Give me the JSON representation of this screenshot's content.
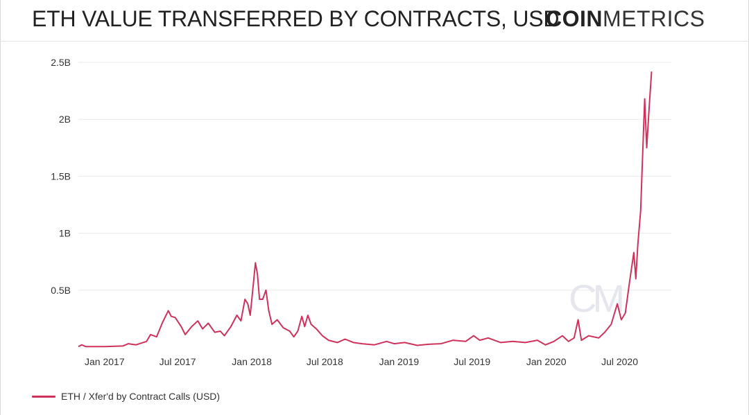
{
  "header": {
    "title": "ETH VALUE TRANSFERRED BY CONTRACTS, USD",
    "brand_bold": "COIN",
    "brand_light": "METRICS"
  },
  "watermark": "CM",
  "colors": {
    "series": "#d0315a",
    "grid": "#e9e9e9",
    "text": "#333333"
  },
  "legend": {
    "label": "ETH / Xfer'd by Contract Calls (USD)"
  },
  "chart_data": {
    "type": "line",
    "title": "ETH VALUE TRANSFERRED BY CONTRACTS, USD",
    "xlabel": "",
    "ylabel": "",
    "ylim": [
      0,
      2500000000
    ],
    "xlim": [
      "2016-10-28",
      "2020-11-06"
    ],
    "grid": "horizontal",
    "legend_position": "bottom-left",
    "y_ticks": [
      {
        "value": 500000000,
        "label": "0.5B"
      },
      {
        "value": 1000000000,
        "label": "1B"
      },
      {
        "value": 1500000000,
        "label": "1.5B"
      },
      {
        "value": 2000000000,
        "label": "2B"
      },
      {
        "value": 2500000000,
        "label": "2.5B"
      }
    ],
    "x_ticks": [
      {
        "date": "2017-01-01",
        "label": "Jan 2017"
      },
      {
        "date": "2017-07-01",
        "label": "Jul 2017"
      },
      {
        "date": "2018-01-01",
        "label": "Jan 2018"
      },
      {
        "date": "2018-07-01",
        "label": "Jul 2018"
      },
      {
        "date": "2019-01-01",
        "label": "Jan 2019"
      },
      {
        "date": "2019-07-01",
        "label": "Jul 2019"
      },
      {
        "date": "2020-01-01",
        "label": "Jan 2020"
      },
      {
        "date": "2020-07-01",
        "label": "Jul 2020"
      }
    ],
    "series": [
      {
        "name": "ETH / Xfer'd by Contract Calls (USD)",
        "points": [
          [
            "2016-10-28",
            5000000
          ],
          [
            "2016-11-05",
            20000000
          ],
          [
            "2016-11-15",
            5000000
          ],
          [
            "2017-01-01",
            5000000
          ],
          [
            "2017-02-15",
            10000000
          ],
          [
            "2017-03-01",
            30000000
          ],
          [
            "2017-03-20",
            20000000
          ],
          [
            "2017-04-15",
            50000000
          ],
          [
            "2017-04-25",
            110000000
          ],
          [
            "2017-05-10",
            90000000
          ],
          [
            "2017-05-25",
            220000000
          ],
          [
            "2017-06-08",
            320000000
          ],
          [
            "2017-06-15",
            270000000
          ],
          [
            "2017-06-25",
            260000000
          ],
          [
            "2017-07-10",
            180000000
          ],
          [
            "2017-07-20",
            110000000
          ],
          [
            "2017-08-05",
            180000000
          ],
          [
            "2017-08-20",
            230000000
          ],
          [
            "2017-09-01",
            160000000
          ],
          [
            "2017-09-15",
            210000000
          ],
          [
            "2017-10-01",
            130000000
          ],
          [
            "2017-10-15",
            140000000
          ],
          [
            "2017-10-25",
            100000000
          ],
          [
            "2017-11-10",
            180000000
          ],
          [
            "2017-11-25",
            280000000
          ],
          [
            "2017-12-05",
            230000000
          ],
          [
            "2017-12-15",
            420000000
          ],
          [
            "2017-12-22",
            380000000
          ],
          [
            "2017-12-28",
            280000000
          ],
          [
            "2018-01-05",
            560000000
          ],
          [
            "2018-01-10",
            740000000
          ],
          [
            "2018-01-15",
            640000000
          ],
          [
            "2018-01-20",
            420000000
          ],
          [
            "2018-01-28",
            420000000
          ],
          [
            "2018-02-05",
            500000000
          ],
          [
            "2018-02-12",
            320000000
          ],
          [
            "2018-02-20",
            200000000
          ],
          [
            "2018-03-05",
            240000000
          ],
          [
            "2018-03-20",
            170000000
          ],
          [
            "2018-04-05",
            140000000
          ],
          [
            "2018-04-15",
            90000000
          ],
          [
            "2018-04-25",
            140000000
          ],
          [
            "2018-05-05",
            270000000
          ],
          [
            "2018-05-12",
            180000000
          ],
          [
            "2018-05-20",
            280000000
          ],
          [
            "2018-05-28",
            200000000
          ],
          [
            "2018-06-10",
            160000000
          ],
          [
            "2018-06-25",
            100000000
          ],
          [
            "2018-07-10",
            60000000
          ],
          [
            "2018-08-01",
            40000000
          ],
          [
            "2018-08-20",
            70000000
          ],
          [
            "2018-09-10",
            40000000
          ],
          [
            "2018-10-01",
            30000000
          ],
          [
            "2018-11-01",
            20000000
          ],
          [
            "2018-12-01",
            50000000
          ],
          [
            "2018-12-20",
            30000000
          ],
          [
            "2019-01-15",
            40000000
          ],
          [
            "2019-02-15",
            15000000
          ],
          [
            "2019-03-15",
            25000000
          ],
          [
            "2019-04-15",
            30000000
          ],
          [
            "2019-05-15",
            60000000
          ],
          [
            "2019-06-15",
            50000000
          ],
          [
            "2019-07-05",
            100000000
          ],
          [
            "2019-07-20",
            60000000
          ],
          [
            "2019-08-10",
            80000000
          ],
          [
            "2019-09-10",
            40000000
          ],
          [
            "2019-10-10",
            50000000
          ],
          [
            "2019-11-10",
            40000000
          ],
          [
            "2019-12-10",
            60000000
          ],
          [
            "2019-12-30",
            20000000
          ],
          [
            "2020-01-20",
            50000000
          ],
          [
            "2020-02-10",
            100000000
          ],
          [
            "2020-02-25",
            50000000
          ],
          [
            "2020-03-10",
            80000000
          ],
          [
            "2020-03-20",
            240000000
          ],
          [
            "2020-03-28",
            60000000
          ],
          [
            "2020-04-15",
            100000000
          ],
          [
            "2020-05-10",
            80000000
          ],
          [
            "2020-05-25",
            130000000
          ],
          [
            "2020-06-10",
            200000000
          ],
          [
            "2020-06-25",
            380000000
          ],
          [
            "2020-07-05",
            240000000
          ],
          [
            "2020-07-15",
            300000000
          ],
          [
            "2020-07-25",
            560000000
          ],
          [
            "2020-08-05",
            830000000
          ],
          [
            "2020-08-10",
            600000000
          ],
          [
            "2020-08-15",
            900000000
          ],
          [
            "2020-08-22",
            1200000000
          ],
          [
            "2020-08-27",
            1700000000
          ],
          [
            "2020-09-01",
            2180000000
          ],
          [
            "2020-09-06",
            1750000000
          ],
          [
            "2020-09-12",
            2100000000
          ],
          [
            "2020-09-18",
            2420000000
          ]
        ]
      }
    ]
  }
}
